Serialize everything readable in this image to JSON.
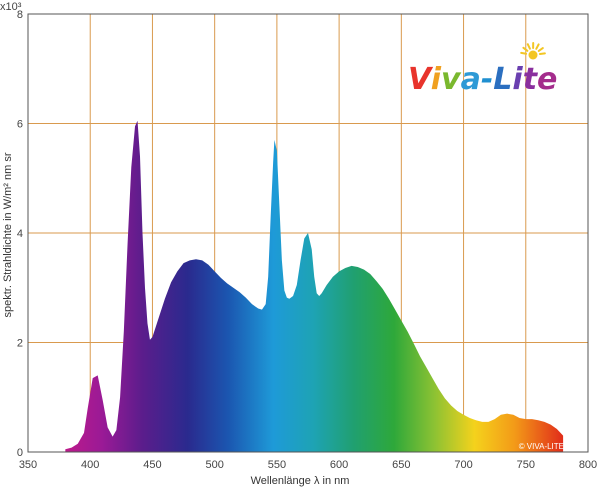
{
  "chart_data": {
    "type": "area",
    "title": "",
    "xlabel": "Wellenlänge λ  in nm",
    "ylabel": "spektr. Strahldichte in W/m² nm sr",
    "y_multiplier_label": "x10³",
    "xlim": [
      350,
      800
    ],
    "ylim": [
      0,
      8
    ],
    "x_ticks": [
      "350",
      "400",
      "450",
      "500",
      "550",
      "600",
      "650",
      "700",
      "750",
      "800"
    ],
    "y_ticks": [
      "0",
      "2",
      "4",
      "6",
      "8"
    ],
    "grid": true,
    "grid_color": "#d99a4e",
    "fill": "visible-spectrum gradient (violet to red)",
    "series": [
      {
        "x": [
          380,
          385,
          390,
          395,
          398,
          402,
          406,
          410,
          414,
          418,
          421,
          424,
          427,
          430,
          433,
          436,
          438,
          440,
          442,
          444,
          446,
          448,
          450,
          455,
          460,
          465,
          470,
          475,
          480,
          485,
          490,
          495,
          500,
          505,
          510,
          515,
          520,
          525,
          530,
          535,
          538,
          541,
          543,
          545,
          547,
          548,
          550,
          552,
          554,
          556,
          558,
          560,
          563,
          566,
          569,
          572,
          575,
          578,
          580,
          582,
          584,
          586,
          590,
          595,
          600,
          605,
          610,
          615,
          620,
          625,
          630,
          635,
          640,
          645,
          650,
          655,
          660,
          665,
          670,
          675,
          680,
          685,
          690,
          695,
          700,
          705,
          710,
          715,
          720,
          725,
          730,
          735,
          740,
          745,
          750,
          755,
          760,
          765,
          770,
          775,
          780
        ],
        "y": [
          0.05,
          0.08,
          0.15,
          0.35,
          0.8,
          1.35,
          1.4,
          0.95,
          0.45,
          0.28,
          0.4,
          1.0,
          2.2,
          3.8,
          5.2,
          5.95,
          6.05,
          5.4,
          4.0,
          3.0,
          2.35,
          2.05,
          2.1,
          2.45,
          2.8,
          3.1,
          3.3,
          3.45,
          3.5,
          3.52,
          3.5,
          3.42,
          3.3,
          3.18,
          3.08,
          3.0,
          2.92,
          2.82,
          2.7,
          2.62,
          2.6,
          2.7,
          3.2,
          4.3,
          5.3,
          5.7,
          5.5,
          4.5,
          3.5,
          2.95,
          2.82,
          2.8,
          2.85,
          3.05,
          3.5,
          3.9,
          4.0,
          3.7,
          3.2,
          2.9,
          2.85,
          2.9,
          3.05,
          3.2,
          3.3,
          3.36,
          3.4,
          3.38,
          3.33,
          3.25,
          3.12,
          2.98,
          2.8,
          2.6,
          2.4,
          2.2,
          1.98,
          1.75,
          1.55,
          1.35,
          1.15,
          0.98,
          0.85,
          0.75,
          0.68,
          0.62,
          0.58,
          0.55,
          0.55,
          0.6,
          0.68,
          0.7,
          0.68,
          0.62,
          0.6,
          0.6,
          0.58,
          0.55,
          0.5,
          0.42,
          0.3
        ]
      }
    ],
    "watermark": "© VIVA-LITE"
  },
  "logo": {
    "letters": [
      {
        "ch": "V",
        "color": "#e8342c"
      },
      {
        "ch": "i",
        "color": "#f0a020"
      },
      {
        "ch": "v",
        "color": "#7ab82e"
      },
      {
        "ch": "a",
        "color": "#2e9ad6"
      },
      {
        "ch": "-",
        "color": "#1f8fd0"
      },
      {
        "ch": "L",
        "color": "#2b6fc0"
      },
      {
        "ch": "i",
        "color": "#6a3fb0"
      },
      {
        "ch": "t",
        "color": "#8a2f9e"
      },
      {
        "ch": "e",
        "color": "#a42c8c"
      }
    ],
    "sun_color": "#f3c623"
  }
}
